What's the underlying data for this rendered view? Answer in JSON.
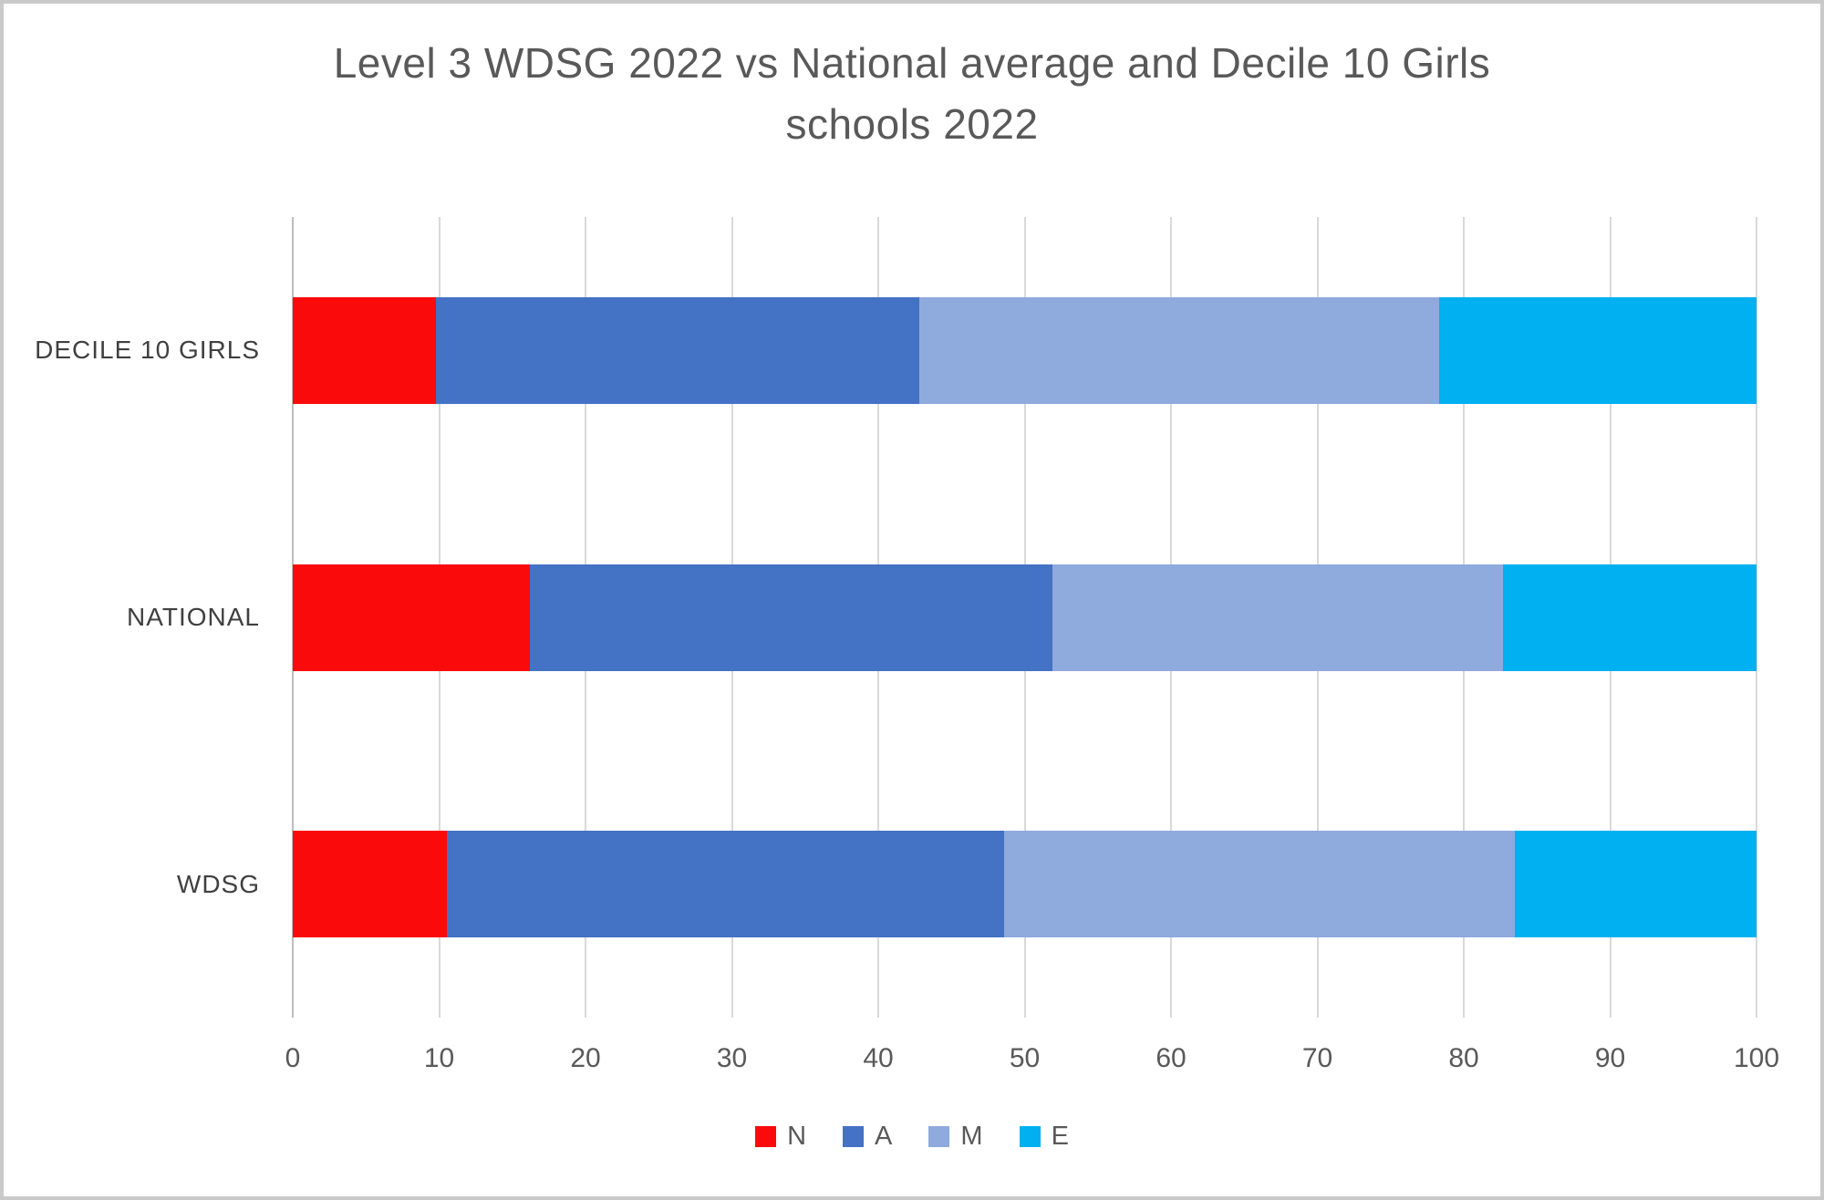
{
  "title": {
    "line1": "Level 3 WDSG 2022 vs National average and Decile 10 Girls",
    "line2": "schools  2022"
  },
  "styles": {
    "text_color": "#595959",
    "category_label_color": "#404040",
    "gridline_color": "#d9d9d9",
    "axis_line_color": "#bdbdbd",
    "background": "#ffffff",
    "frame_border_color": "#c9c9c9"
  },
  "chart_data": {
    "type": "bar",
    "orientation": "horizontal",
    "stacked": true,
    "title": "Level 3 WDSG 2022 vs National average and Decile 10 Girls schools  2022",
    "categories_top_to_bottom": [
      "DECILE 10 GIRLS",
      "NATIONAL",
      "WDSG"
    ],
    "series": [
      {
        "name": "N",
        "color": "#fa0a0a",
        "values": [
          9.8,
          16.2,
          10.5
        ]
      },
      {
        "name": "A",
        "color": "#4472c4",
        "values": [
          33.0,
          35.7,
          38.1
        ]
      },
      {
        "name": "M",
        "color": "#8faadc",
        "values": [
          35.5,
          30.8,
          34.9
        ]
      },
      {
        "name": "E",
        "color": "#00b0f0",
        "values": [
          21.7,
          17.3,
          16.5
        ]
      }
    ],
    "xlabel": "",
    "ylabel": "",
    "xlim": [
      0,
      100
    ],
    "xticks": [
      "0",
      "10",
      "20",
      "30",
      "40",
      "50",
      "60",
      "70",
      "80",
      "90",
      "100"
    ],
    "grid": "vertical",
    "legend_position": "bottom"
  }
}
